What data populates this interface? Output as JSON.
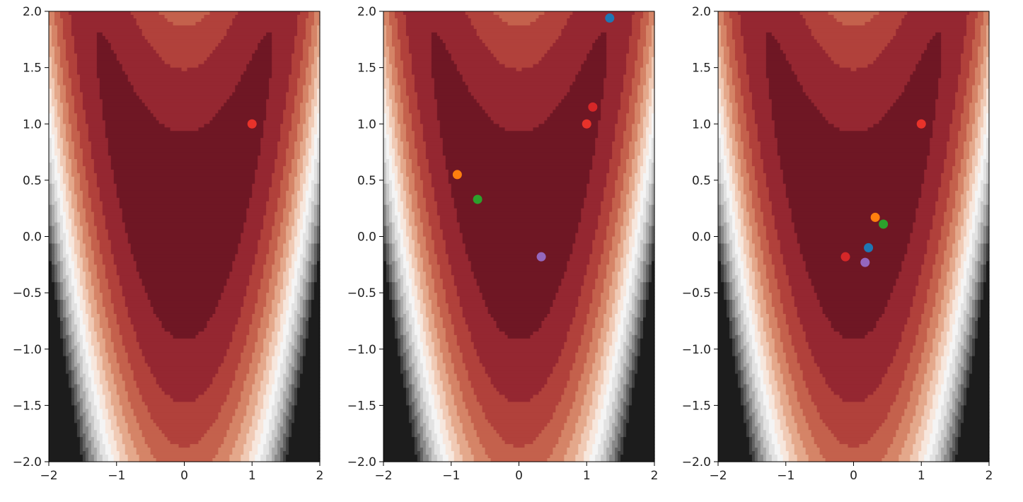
{
  "chart_data": [
    {
      "type": "scatter",
      "background": "contour",
      "xlim": [
        -2,
        2
      ],
      "ylim": [
        -2,
        2
      ],
      "xticks": [
        "−2",
        "−1",
        "0",
        "1",
        "2"
      ],
      "yticks": [
        "2.0",
        "1.5",
        "1.0",
        "0.5",
        "0.0",
        "−0.5",
        "−1.0",
        "−1.5",
        "−2.0"
      ],
      "series": [
        {
          "x": 1.0,
          "y": 1.0,
          "color": "#e8322a"
        }
      ]
    },
    {
      "type": "scatter",
      "background": "contour",
      "xlim": [
        -2,
        2
      ],
      "ylim": [
        -2,
        2
      ],
      "xticks": [
        "−2",
        "−1",
        "0",
        "1",
        "2"
      ],
      "yticks": [
        "2.0",
        "1.5",
        "1.0",
        "0.5",
        "0.0",
        "−0.5",
        "−1.0",
        "−1.5",
        "−2.0"
      ],
      "series": [
        {
          "x": 1.0,
          "y": 1.0,
          "color": "#e8322a"
        },
        {
          "x": 1.34,
          "y": 1.94,
          "color": "#1f77b4"
        },
        {
          "x": -0.91,
          "y": 0.55,
          "color": "#ff7f0e"
        },
        {
          "x": -0.61,
          "y": 0.33,
          "color": "#2ca02c"
        },
        {
          "x": 1.09,
          "y": 1.15,
          "color": "#d62728"
        },
        {
          "x": 0.33,
          "y": -0.18,
          "color": "#9467bd"
        }
      ]
    },
    {
      "type": "scatter",
      "background": "contour",
      "xlim": [
        -2,
        2
      ],
      "ylim": [
        -2,
        2
      ],
      "xticks": [
        "−2",
        "−1",
        "0",
        "1",
        "2"
      ],
      "yticks": [
        "2.0",
        "1.5",
        "1.0",
        "0.5",
        "0.0",
        "−0.5",
        "−1.0",
        "−1.5",
        "−2.0"
      ],
      "series": [
        {
          "x": 1.0,
          "y": 1.0,
          "color": "#e8322a"
        },
        {
          "x": 0.22,
          "y": -0.1,
          "color": "#1f77b4"
        },
        {
          "x": 0.32,
          "y": 0.17,
          "color": "#ff7f0e"
        },
        {
          "x": 0.44,
          "y": 0.11,
          "color": "#2ca02c"
        },
        {
          "x": -0.12,
          "y": -0.18,
          "color": "#d62728"
        },
        {
          "x": 0.17,
          "y": -0.23,
          "color": "#9467bd"
        }
      ]
    }
  ]
}
